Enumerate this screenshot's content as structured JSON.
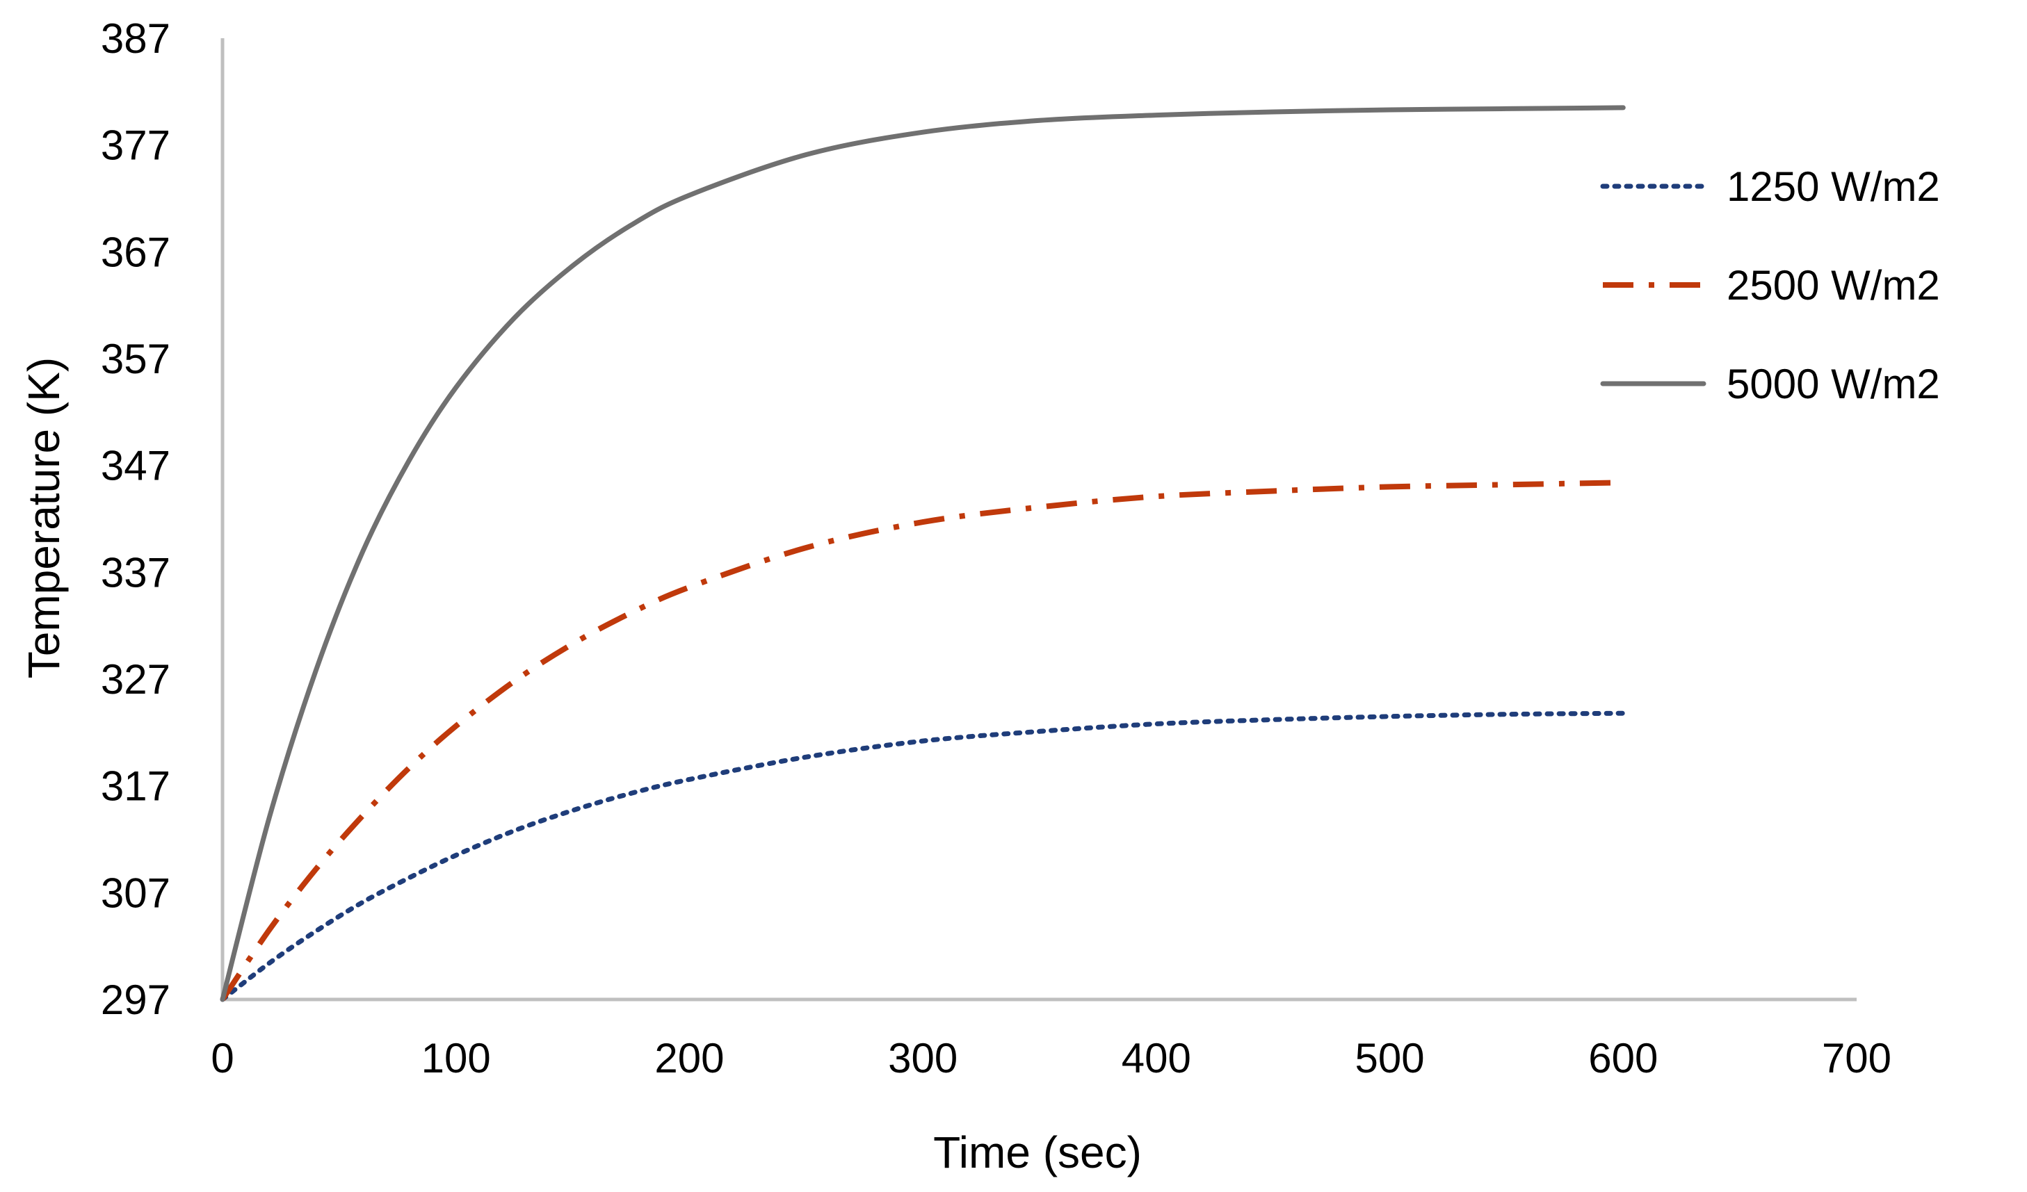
{
  "chart_data": {
    "type": "line",
    "title": "",
    "xlabel": "Time (sec)",
    "ylabel": "Temperature (K)",
    "xlim": [
      0,
      700
    ],
    "ylim": [
      297,
      387
    ],
    "xticks": [
      0,
      100,
      200,
      300,
      400,
      500,
      600,
      700
    ],
    "yticks": [
      297,
      307,
      317,
      327,
      337,
      347,
      357,
      367,
      377,
      387
    ],
    "grid": false,
    "legend_position": "right",
    "x": [
      0,
      20,
      40,
      60,
      80,
      100,
      125,
      150,
      175,
      200,
      250,
      300,
      350,
      400,
      450,
      500,
      550,
      600
    ],
    "series": [
      {
        "name": "1250 W/m2",
        "color": "#1f3d7a",
        "dash": "dotted",
        "values": [
          297.0,
          300.4,
          303.4,
          306.1,
          308.4,
          310.5,
          312.8,
          314.7,
          316.3,
          317.6,
          319.7,
          321.2,
          322.1,
          322.8,
          323.2,
          323.5,
          323.7,
          323.8
        ]
      },
      {
        "name": "2500 W/m2",
        "color": "#c0390b",
        "dash": "dash-dot",
        "values": [
          297.0,
          303.5,
          309.2,
          314.2,
          318.7,
          322.6,
          326.8,
          330.3,
          333.2,
          335.6,
          339.3,
          341.7,
          343.1,
          344.1,
          344.6,
          345.0,
          345.2,
          345.4
        ]
      },
      {
        "name": "5000 W/m2",
        "color": "#707070",
        "dash": "solid",
        "values": [
          297.0,
          314.0,
          327.8,
          338.9,
          347.5,
          354.3,
          360.8,
          365.7,
          369.5,
          372.3,
          376.1,
          378.2,
          379.3,
          379.8,
          380.1,
          380.3,
          380.4,
          380.5
        ]
      }
    ]
  }
}
